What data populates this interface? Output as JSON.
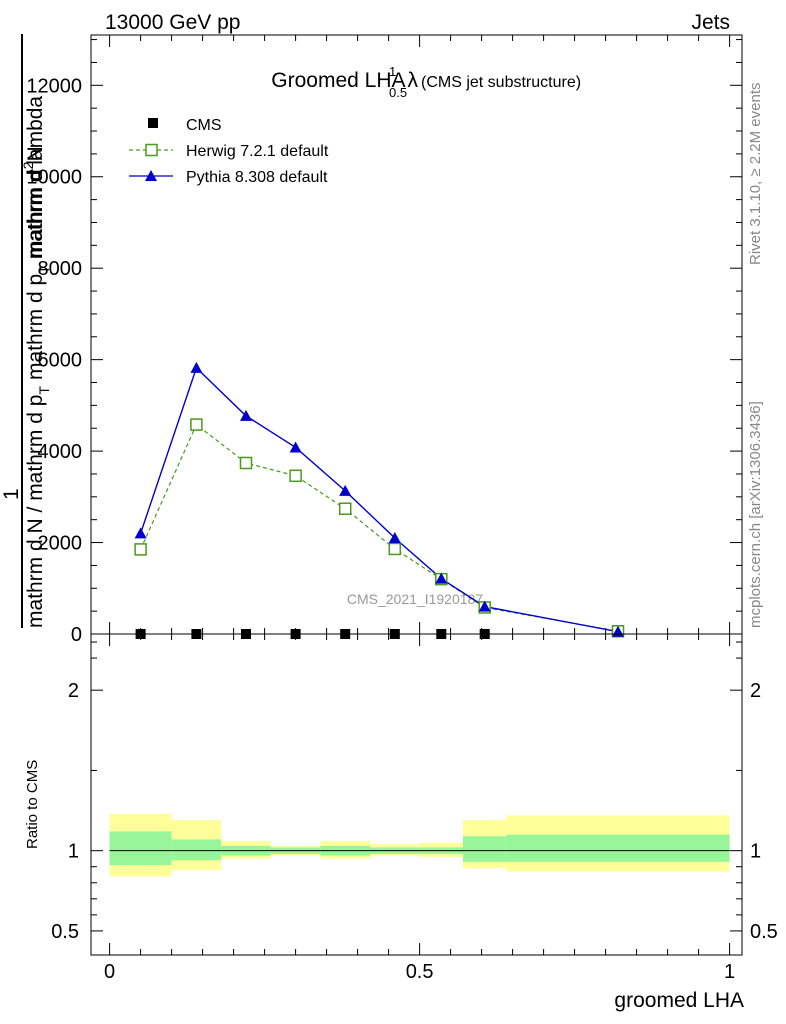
{
  "header": {
    "left": "13000 GeV pp",
    "right": "Jets"
  },
  "side_labels": {
    "rivet": "Rivet 3.1.10, ≥ 2.2M events",
    "mcplots": "mcplots.cern.ch [arXiv:1306.3436]"
  },
  "chart_data": [
    {
      "type": "line",
      "title": "Groomed LHA",
      "title_symbol": "λ",
      "title_sup": "1",
      "title_sub": "0.5",
      "subtitle": "(CMS jet substructure)",
      "ylabel_numerator": "mathrm d²N",
      "ylabel_numerator_base": "mathrm d",
      "ylabel_numerator_exp": "2",
      "ylabel_numerator_tail": "N",
      "ylabel_prefix": "1",
      "ylabel_denominator": "mathrm d N / mathrm d p",
      "ylabel_denominator_t": "T",
      "ylabel_denominator_tail": "mathrm d p",
      "ylabel_denominator_tail_t": "T",
      "ylabel_denominator_end": "mathrm d lambda",
      "watermark": "CMS_2021_I1920187",
      "xlim": [
        -0.03,
        1.02
      ],
      "ylim": [
        0,
        13100
      ],
      "yticks": [
        0,
        2000,
        4000,
        6000,
        8000,
        10000,
        12000
      ],
      "ytick_labels": [
        "0",
        "2000",
        "4000",
        "6000",
        "8000",
        "10000",
        "12000"
      ],
      "legend_position": "top-left",
      "series": [
        {
          "name": "CMS",
          "style": "data-markers",
          "color": "#000000",
          "x": [
            0.05,
            0.14,
            0.22,
            0.3,
            0.38,
            0.46,
            0.535,
            0.605
          ],
          "y": [
            0,
            0,
            0,
            0,
            0,
            0,
            0,
            0
          ]
        },
        {
          "name": "Herwig 7.2.1 default",
          "style": "dashed-open-square",
          "color": "#4a9a1c",
          "x": [
            0.05,
            0.14,
            0.22,
            0.3,
            0.38,
            0.46,
            0.535,
            0.605,
            0.82
          ],
          "y": [
            1850,
            4580,
            3740,
            3460,
            2740,
            1860,
            1200,
            580,
            60
          ]
        },
        {
          "name": "Pythia 8.308 default",
          "style": "solid-filled-triangle",
          "color": "#0000cc",
          "x": [
            0.05,
            0.14,
            0.22,
            0.3,
            0.38,
            0.46,
            0.535,
            0.605,
            0.82
          ],
          "y": [
            2200,
            5820,
            4770,
            4080,
            3130,
            2100,
            1210,
            600,
            50
          ]
        }
      ]
    },
    {
      "type": "area",
      "ylabel": "Ratio to CMS",
      "xlabel": "groomed LHA",
      "xlim": [
        -0.03,
        1.02
      ],
      "ylim": [
        0.35,
        2.35
      ],
      "xticks": [
        0,
        0.5,
        1
      ],
      "xtick_labels": [
        "0",
        "0.5",
        "1"
      ],
      "yticks": [
        0.5,
        1,
        2
      ],
      "ytick_labels": [
        "0.5",
        "1",
        "2"
      ],
      "reference_line": 1,
      "bands": [
        {
          "x0": 0.0,
          "x1": 0.1,
          "inner": [
            0.91,
            1.12
          ],
          "outer": [
            0.84,
            1.23
          ]
        },
        {
          "x0": 0.1,
          "x1": 0.18,
          "inner": [
            0.94,
            1.07
          ],
          "outer": [
            0.88,
            1.19
          ]
        },
        {
          "x0": 0.18,
          "x1": 0.26,
          "inner": [
            0.97,
            1.03
          ],
          "outer": [
            0.95,
            1.06
          ]
        },
        {
          "x0": 0.26,
          "x1": 0.34,
          "inner": [
            0.98,
            1.02
          ],
          "outer": [
            0.97,
            1.03
          ]
        },
        {
          "x0": 0.34,
          "x1": 0.42,
          "inner": [
            0.97,
            1.03
          ],
          "outer": [
            0.95,
            1.06
          ]
        },
        {
          "x0": 0.42,
          "x1": 0.5,
          "inner": [
            0.98,
            1.02
          ],
          "outer": [
            0.97,
            1.04
          ]
        },
        {
          "x0": 0.5,
          "x1": 0.57,
          "inner": [
            0.98,
            1.02
          ],
          "outer": [
            0.96,
            1.05
          ]
        },
        {
          "x0": 0.57,
          "x1": 0.64,
          "inner": [
            0.93,
            1.09
          ],
          "outer": [
            0.89,
            1.19
          ]
        },
        {
          "x0": 0.64,
          "x1": 1.0,
          "inner": [
            0.93,
            1.1
          ],
          "outer": [
            0.87,
            1.22
          ]
        }
      ],
      "band_colors": {
        "inner": "#99f599",
        "outer": "#ffff99"
      }
    }
  ]
}
